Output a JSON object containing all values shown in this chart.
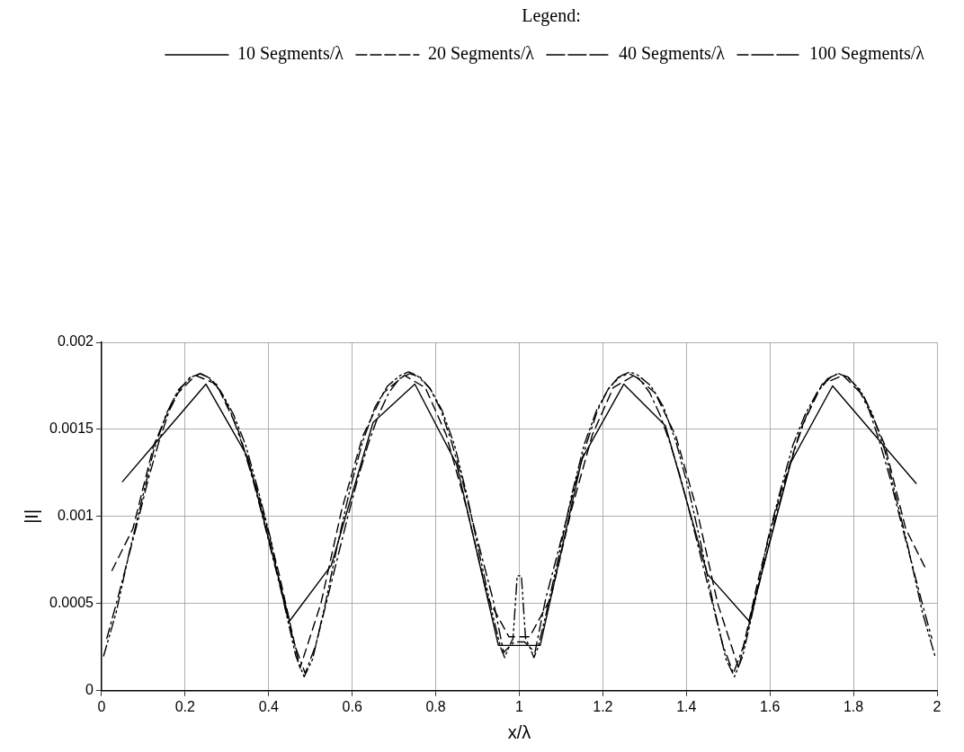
{
  "chart_data": {
    "type": "line",
    "xlabel": "x/λ",
    "ylabel": "|I|",
    "legend_title": "Legend:",
    "legend": "top right",
    "grid": true,
    "marker": "none",
    "xlim": [
      0,
      2
    ],
    "xticks": [
      0,
      0.2,
      0.4,
      0.6,
      0.8,
      1,
      1.2,
      1.4,
      1.6,
      1.8,
      2
    ],
    "ylim": [
      0,
      0.002
    ],
    "yticks": [
      0,
      0.0005,
      0.001,
      0.0015,
      0.002
    ],
    "series": [
      {
        "name": "10 Segments/λ",
        "color": "#000000",
        "line_style": "solid",
        "x": [
          0.05,
          0.15,
          0.25,
          0.35,
          0.45,
          0.55,
          0.65,
          0.75,
          0.85,
          0.95,
          1.05,
          1.15,
          1.25,
          1.35,
          1.45,
          1.55,
          1.65,
          1.75,
          1.85,
          1.95
        ],
        "values": [
          0.0012,
          0.00148,
          0.00176,
          0.00134,
          0.0004,
          0.00072,
          0.00154,
          0.00176,
          0.0013,
          0.00026,
          0.00026,
          0.00133,
          0.00176,
          0.00152,
          0.00067,
          0.0004,
          0.00131,
          0.00175,
          0.00147,
          0.00119
        ]
      },
      {
        "name": "20 Segments/λ",
        "color": "#000000",
        "line_style": "dashed",
        "x": [
          0.025,
          0.075,
          0.125,
          0.175,
          0.225,
          0.275,
          0.325,
          0.375,
          0.425,
          0.475,
          0.525,
          0.575,
          0.625,
          0.675,
          0.725,
          0.775,
          0.825,
          0.875,
          0.925,
          0.975,
          1.025,
          1.075,
          1.125,
          1.175,
          1.225,
          1.275,
          1.325,
          1.375,
          1.425,
          1.475,
          1.525,
          1.575,
          1.625,
          1.675,
          1.725,
          1.775,
          1.825,
          1.875,
          1.925,
          1.975
        ],
        "values": [
          0.00069,
          0.00093,
          0.00141,
          0.00169,
          0.00181,
          0.00176,
          0.00151,
          0.00113,
          0.00067,
          0.00013,
          0.0005,
          0.00104,
          0.00146,
          0.00171,
          0.00181,
          0.00174,
          0.00147,
          0.00104,
          0.00053,
          0.00031,
          0.00031,
          0.00053,
          0.00104,
          0.00147,
          0.00174,
          0.00181,
          0.00171,
          0.00146,
          0.00104,
          0.0005,
          0.00013,
          0.00067,
          0.00113,
          0.00151,
          0.00176,
          0.00181,
          0.00169,
          0.00141,
          0.00093,
          0.00069
        ]
      },
      {
        "name": "40 Segments/λ",
        "color": "#000000",
        "line_style": "dashdot",
        "x": [
          0.0125,
          0.0375,
          0.0625,
          0.0875,
          0.1125,
          0.1375,
          0.1625,
          0.1875,
          0.2125,
          0.2375,
          0.2625,
          0.2875,
          0.3125,
          0.3375,
          0.3625,
          0.3875,
          0.4125,
          0.4375,
          0.4625,
          0.4875,
          0.5125,
          0.5375,
          0.5625,
          0.5875,
          0.6125,
          0.6375,
          0.6625,
          0.6875,
          0.7125,
          0.7375,
          0.7625,
          0.7875,
          0.8125,
          0.8375,
          0.8625,
          0.8875,
          0.9125,
          0.9375,
          0.9625,
          0.9875,
          1.0125,
          1.0375,
          1.0625,
          1.0875,
          1.1125,
          1.1375,
          1.1625,
          1.1875,
          1.2125,
          1.2375,
          1.2625,
          1.2875,
          1.3125,
          1.3375,
          1.3625,
          1.3875,
          1.4125,
          1.4375,
          1.4625,
          1.4875,
          1.5125,
          1.5375,
          1.5625,
          1.5875,
          1.6125,
          1.6375,
          1.6625,
          1.6875,
          1.7125,
          1.7375,
          1.7625,
          1.7875,
          1.8125,
          1.8375,
          1.8625,
          1.8875,
          1.9125,
          1.9375,
          1.9625,
          1.9875
        ],
        "values": [
          0.0003,
          0.00052,
          0.00075,
          0.00098,
          0.00122,
          0.00143,
          0.00161,
          0.00173,
          0.0018,
          0.00182,
          0.00179,
          0.00171,
          0.00158,
          0.00141,
          0.00121,
          0.00098,
          0.00074,
          0.0005,
          0.00026,
          0.0001,
          0.00026,
          0.0005,
          0.00074,
          0.00098,
          0.00121,
          0.00141,
          0.00158,
          0.00171,
          0.00179,
          0.00182,
          0.0018,
          0.00173,
          0.00161,
          0.00143,
          0.00122,
          0.00098,
          0.00075,
          0.00052,
          0.00022,
          0.00028,
          0.00028,
          0.00022,
          0.00052,
          0.00075,
          0.00098,
          0.00122,
          0.00143,
          0.00161,
          0.00173,
          0.0018,
          0.00182,
          0.00179,
          0.00171,
          0.00158,
          0.00141,
          0.00121,
          0.00098,
          0.00074,
          0.0005,
          0.00026,
          0.0001,
          0.00026,
          0.0005,
          0.00074,
          0.00098,
          0.00121,
          0.00141,
          0.00158,
          0.00171,
          0.00179,
          0.00182,
          0.0018,
          0.00173,
          0.00161,
          0.00143,
          0.00122,
          0.00098,
          0.00075,
          0.00052,
          0.0003
        ]
      },
      {
        "name": "100 Segments/λ",
        "color": "#000000",
        "line_style": "dashdotdot",
        "x": [
          0.005,
          0.035,
          0.065,
          0.095,
          0.125,
          0.155,
          0.185,
          0.215,
          0.235,
          0.255,
          0.285,
          0.315,
          0.345,
          0.375,
          0.405,
          0.435,
          0.465,
          0.485,
          0.505,
          0.535,
          0.565,
          0.595,
          0.625,
          0.655,
          0.685,
          0.715,
          0.735,
          0.755,
          0.785,
          0.815,
          0.845,
          0.875,
          0.905,
          0.935,
          0.955,
          0.965,
          0.975,
          0.985,
          0.995,
          1.005,
          1.015,
          1.025,
          1.035,
          1.045,
          1.065,
          1.095,
          1.125,
          1.155,
          1.185,
          1.215,
          1.245,
          1.265,
          1.285,
          1.315,
          1.345,
          1.375,
          1.405,
          1.435,
          1.465,
          1.495,
          1.515,
          1.535,
          1.565,
          1.595,
          1.625,
          1.655,
          1.685,
          1.715,
          1.745,
          1.765,
          1.785,
          1.815,
          1.845,
          1.875,
          1.905,
          1.935,
          1.965,
          1.995
        ],
        "values": [
          0.0002,
          0.00045,
          0.00078,
          0.00108,
          0.00138,
          0.00159,
          0.00173,
          0.0018,
          0.00182,
          0.0018,
          0.00172,
          0.00159,
          0.00141,
          0.00115,
          0.00087,
          0.00052,
          0.0002,
          8e-05,
          0.00018,
          0.00049,
          0.00084,
          0.00116,
          0.00143,
          0.00163,
          0.00175,
          0.00181,
          0.00183,
          0.00181,
          0.00174,
          0.00161,
          0.00141,
          0.00112,
          0.00078,
          0.00045,
          0.00025,
          0.00019,
          0.00025,
          0.0003,
          0.00066,
          0.00066,
          0.0003,
          0.00025,
          0.00019,
          0.00025,
          0.00045,
          0.00078,
          0.00112,
          0.00141,
          0.00161,
          0.00174,
          0.00181,
          0.00183,
          0.00181,
          0.00175,
          0.00163,
          0.00143,
          0.00116,
          0.00084,
          0.00049,
          0.00018,
          8e-05,
          0.0002,
          0.00052,
          0.00087,
          0.00115,
          0.00141,
          0.00159,
          0.00172,
          0.0018,
          0.00182,
          0.0018,
          0.00173,
          0.00159,
          0.00138,
          0.00108,
          0.00078,
          0.00045,
          0.0002
        ]
      }
    ]
  }
}
